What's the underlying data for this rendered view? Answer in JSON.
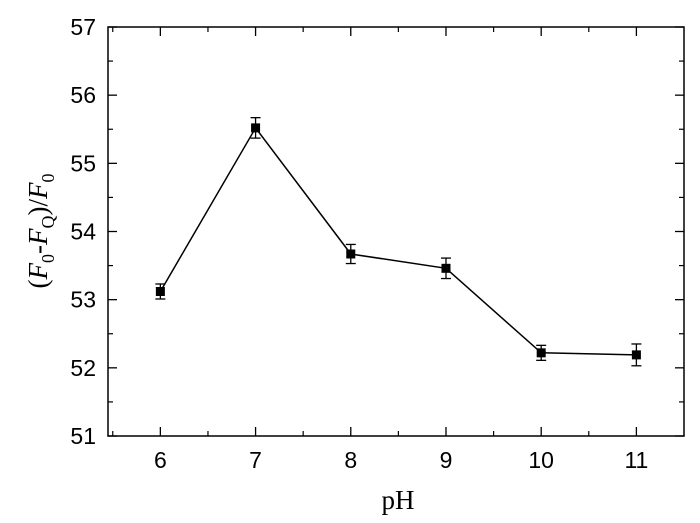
{
  "chart_data": {
    "type": "line",
    "xlabel": "pH",
    "ylabel": {
      "open": "(",
      "F": "F",
      "sub0": "0",
      "dash": "-",
      "sub_q": "Q",
      "close": ")/"
    },
    "xlim": [
      5.45,
      11.5
    ],
    "ylim": [
      51,
      57
    ],
    "xticks": [
      6,
      7,
      8,
      9,
      10,
      11
    ],
    "xtick_labels": [
      "6",
      "7",
      "8",
      "9",
      "10",
      "11"
    ],
    "yticks": [
      51,
      52,
      53,
      54,
      55,
      56,
      57
    ],
    "ytick_labels": [
      "51",
      "52",
      "53",
      "54",
      "55",
      "56",
      "57"
    ],
    "grid": false,
    "legend": "none",
    "series": [
      {
        "x": [
          6,
          7,
          8,
          9,
          10,
          11
        ],
        "y": [
          53.12,
          55.52,
          53.67,
          53.46,
          52.22,
          52.19
        ],
        "error": [
          0.11,
          0.15,
          0.14,
          0.15,
          0.11,
          0.16
        ],
        "marker": "square",
        "color": "#000000"
      }
    ]
  }
}
